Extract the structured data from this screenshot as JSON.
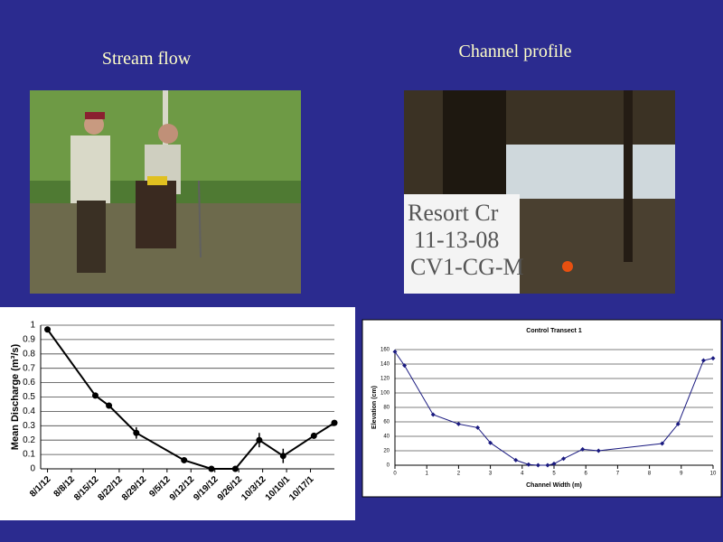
{
  "slide": {
    "headings": [
      "Stream flow",
      "Channel profile"
    ],
    "sign_text": [
      "Resort Cr",
      "11-13-08",
      "CV1-CG-M"
    ]
  },
  "chart_data": [
    {
      "type": "line",
      "y_label": "Mean Discharge (m³/s)",
      "x": [
        "2012-08-01",
        "2012-08-15",
        "2012-08-19",
        "2012-08-27",
        "2012-09-10",
        "2012-09-18",
        "2012-09-25",
        "2012-10-02",
        "2012-10-09",
        "2012-10-18",
        "2012-10-24"
      ],
      "values": [
        0.97,
        0.51,
        0.44,
        0.25,
        0.06,
        0,
        0,
        0.2,
        0.09,
        0.23,
        0.32
      ],
      "errors": [
        0.01,
        0.01,
        0.02,
        0.04,
        0.01,
        0.005,
        0.005,
        0.05,
        0.05,
        0.02,
        0.01
      ],
      "color": "#000000",
      "ylim": [
        0,
        1
      ],
      "yticks": [
        0,
        0.1,
        0.2,
        0.3,
        0.4,
        0.5,
        0.6,
        0.7,
        0.8,
        0.9,
        1
      ],
      "xlim": [
        "2012-07-30",
        "2012-10-24"
      ],
      "xticks": [
        {
          "value": "2012-08-01",
          "label": "8/1/12"
        },
        {
          "value": "2012-08-08",
          "label": "8/8/12"
        },
        {
          "value": "2012-08-15",
          "label": "8/15/12"
        },
        {
          "value": "2012-08-22",
          "label": "8/22/12"
        },
        {
          "value": "2012-08-29",
          "label": "8/29/12"
        },
        {
          "value": "2012-09-05",
          "label": "9/5/12"
        },
        {
          "value": "2012-09-12",
          "label": "9/12/12"
        },
        {
          "value": "2012-09-19",
          "label": "9/19/12"
        },
        {
          "value": "2012-09-26",
          "label": "9/26/12"
        },
        {
          "value": "2012-10-03",
          "label": "10/3/12"
        },
        {
          "value": "2012-10-10",
          "label": "10/10/1"
        },
        {
          "value": "2012-10-17",
          "label": "10/17/1"
        }
      ],
      "grid": true
    },
    {
      "type": "scatter",
      "title": "Control Transect 1",
      "x_label": "Channel Width (m)",
      "y_label": "Elevation (cm)",
      "x": [
        0,
        0.3,
        1.2,
        2,
        2.6,
        3,
        3.8,
        4.2,
        4.5,
        4.8,
        5,
        5.3,
        5.9,
        6.4,
        8.4,
        8.9,
        9.7,
        10
      ],
      "values": [
        157,
        138,
        70,
        57,
        52,
        31,
        7,
        1,
        0,
        0,
        2,
        9,
        22,
        20,
        30,
        57,
        145,
        148
      ],
      "color": "#1a1a80",
      "xlim": [
        0,
        10
      ],
      "xticks": [
        0,
        1,
        2,
        3,
        4,
        5,
        6,
        7,
        8,
        9,
        10
      ],
      "ylim": [
        0,
        160
      ],
      "yticks": [
        0,
        20,
        40,
        60,
        80,
        100,
        120,
        140,
        160
      ],
      "grid": true
    }
  ]
}
